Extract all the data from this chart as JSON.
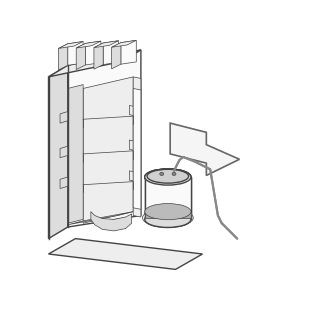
{
  "background_color": "#ffffff",
  "line_color": "#444444",
  "figsize": [
    3.2,
    3.2
  ],
  "dpi": 100,
  "lw_main": 1.0,
  "lw_thin": 0.5,
  "face_white": "#fafafa",
  "face_light": "#eeeeee",
  "face_mid": "#dddddd",
  "face_dark": "#cccccc"
}
